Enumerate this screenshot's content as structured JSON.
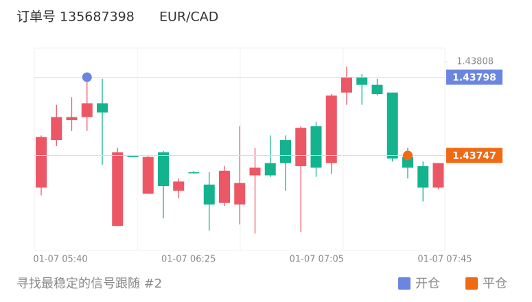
{
  "chart_data": {
    "type": "candlestick",
    "title": "订单号 135687398",
    "subtitle": "EUR/CAD",
    "footer": "寻找最稳定的信号跟随 #2",
    "xticks": [
      "01-07 05:40",
      "01-07 06:25",
      "01-07 07:05",
      "01-07 07:45"
    ],
    "open": [
      1.43726,
      1.43757,
      1.4377,
      1.43772,
      1.43781,
      1.43701,
      1.43747,
      1.43722,
      1.43749,
      1.43724,
      1.43736,
      1.43728,
      1.43716,
      1.43715,
      1.43734,
      1.43742,
      1.43757,
      1.4374,
      1.43766,
      1.43742,
      1.43788,
      1.43798,
      1.43793,
      1.43788,
      1.43746,
      1.4374,
      1.43726
    ],
    "high": [
      1.4376,
      1.4378,
      1.43785,
      1.43795,
      1.43797,
      1.43752,
      1.43747,
      1.43747,
      1.4375,
      1.43732,
      1.43737,
      1.43736,
      1.4374,
      1.43766,
      1.43752,
      1.4376,
      1.4376,
      1.43766,
      1.43769,
      1.43787,
      1.43805,
      1.438,
      1.43797,
      1.43788,
      1.43752,
      1.43743,
      1.43742
    ],
    "low": [
      1.43721,
      1.43753,
      1.43763,
      1.43763,
      1.43741,
      1.43701,
      1.43746,
      1.43722,
      1.43706,
      1.43719,
      1.43735,
      1.43698,
      1.43714,
      1.43702,
      1.43696,
      1.43733,
      1.43724,
      1.43697,
      1.43733,
      1.43735,
      1.4378,
      1.4378,
      1.43786,
      1.43743,
      1.43732,
      1.43717,
      1.43725
    ],
    "close": [
      1.43759,
      1.43772,
      1.43772,
      1.43781,
      1.43775,
      1.43749,
      1.43746,
      1.43746,
      1.43727,
      1.4373,
      1.43736,
      1.43715,
      1.43737,
      1.43729,
      1.43739,
      1.43734,
      1.43742,
      1.43765,
      1.43739,
      1.43786,
      1.43798,
      1.43793,
      1.43787,
      1.43745,
      1.43739,
      1.43726,
      1.43742
    ],
    "up_color": "#ec5766",
    "down_color": "#14b38e",
    "ylim": [
      1.43685,
      1.43817
    ],
    "yticks": [
      1.43808
    ],
    "markers": [
      {
        "name": "开仓",
        "color": "#6b86e0",
        "index": 3,
        "value": 1.43798
      },
      {
        "name": "平仓",
        "color": "#f06a14",
        "index": 24,
        "value": 1.43747
      }
    ]
  }
}
